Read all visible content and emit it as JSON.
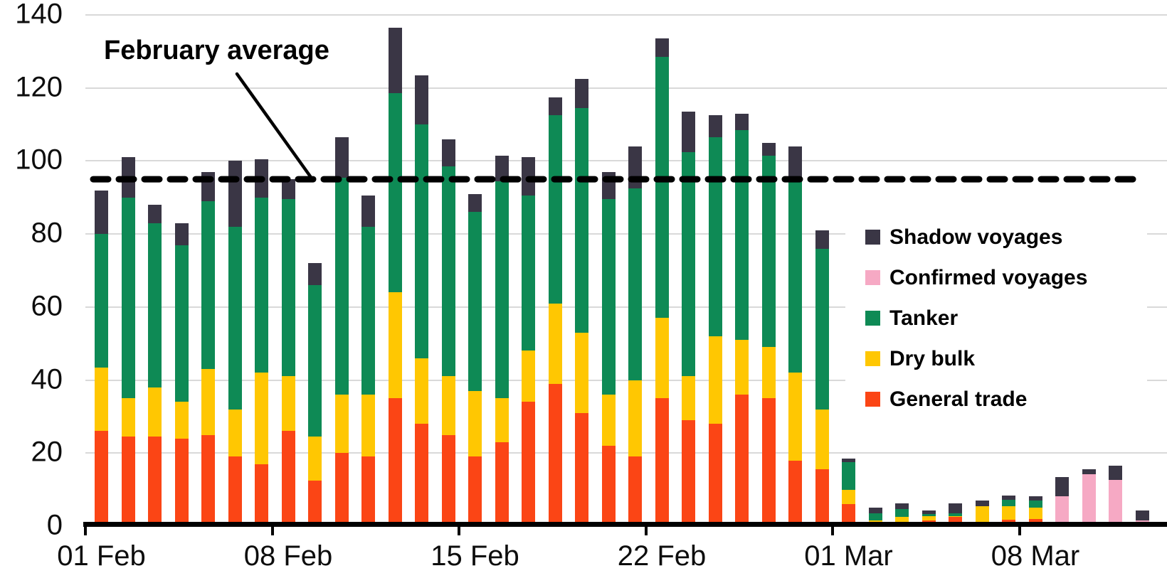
{
  "annotation": {
    "label": "February average"
  },
  "colors": {
    "shadow": "#3a3645",
    "confirmed": "#f6a9c4",
    "tanker": "#0e8a55",
    "dry": "#ffc702",
    "general": "#fb4515",
    "grid": "#d9d9d9",
    "axis": "#000000",
    "average_line": "#000000"
  },
  "legend": {
    "items": [
      {
        "label": "Shadow voyages",
        "color_key": "shadow"
      },
      {
        "label": "Confirmed voyages",
        "color_key": "confirmed"
      },
      {
        "label": "Tanker",
        "color_key": "tanker"
      },
      {
        "label": "Dry bulk",
        "color_key": "dry"
      },
      {
        "label": "General trade",
        "color_key": "general"
      }
    ]
  },
  "axis": {
    "y_tick_labels": [
      "0",
      "20",
      "40",
      "60",
      "80",
      "100",
      "120",
      "140"
    ],
    "y_tick_values": [
      0,
      20,
      40,
      60,
      80,
      100,
      120,
      140
    ],
    "x_tick_labels": [
      "01 Feb",
      "08 Feb",
      "15 Feb",
      "22 Feb",
      "01 Mar",
      "08 Mar"
    ],
    "x_tick_indices": [
      0,
      7,
      14,
      21,
      28,
      35
    ]
  },
  "chart_data": {
    "type": "bar",
    "stacked": true,
    "title": "",
    "xlabel": "",
    "ylabel": "",
    "ylim": [
      0,
      140
    ],
    "grid": true,
    "legend_position": "right-inside",
    "categories": [
      "01 Feb",
      "02 Feb",
      "03 Feb",
      "04 Feb",
      "05 Feb",
      "06 Feb",
      "07 Feb",
      "08 Feb",
      "09 Feb",
      "10 Feb",
      "11 Feb",
      "12 Feb",
      "13 Feb",
      "14 Feb",
      "15 Feb",
      "16 Feb",
      "17 Feb",
      "18 Feb",
      "19 Feb",
      "20 Feb",
      "21 Feb",
      "22 Feb",
      "23 Feb",
      "24 Feb",
      "25 Feb",
      "26 Feb",
      "27 Feb",
      "28 Feb",
      "01 Mar",
      "02 Mar",
      "03 Mar",
      "04 Mar",
      "05 Mar",
      "06 Mar",
      "07 Mar",
      "08 Mar",
      "09 Mar",
      "10 Mar",
      "11 Mar",
      "12 Mar"
    ],
    "series": [
      {
        "name": "General trade",
        "color_key": "general",
        "values": [
          26,
          24.5,
          24.5,
          24,
          25,
          19,
          17,
          26,
          12.5,
          20,
          19,
          35,
          28,
          25,
          19,
          23,
          34,
          39,
          31,
          22,
          19,
          35,
          29,
          28,
          36,
          35,
          18,
          15.5,
          6,
          0.5,
          1,
          1.6,
          2.5,
          0.3,
          1.8,
          2,
          0,
          0,
          0,
          0
        ]
      },
      {
        "name": "Dry bulk",
        "color_key": "dry",
        "values": [
          17.5,
          10.5,
          13.5,
          10,
          18,
          13,
          25,
          15,
          12,
          16,
          17,
          29,
          18,
          16,
          18,
          12,
          14,
          22,
          22,
          14,
          21,
          22,
          12,
          24,
          15,
          14,
          24,
          16.5,
          4,
          1,
          1.5,
          1.2,
          0.3,
          5.2,
          3.7,
          3,
          0,
          0,
          0,
          0
        ]
      },
      {
        "name": "Tanker",
        "color_key": "tanker",
        "values": [
          36.5,
          55,
          45,
          43,
          46,
          50,
          48,
          48.5,
          41.5,
          59.5,
          46,
          54.5,
          64,
          57.5,
          49,
          59.5,
          42.5,
          51.5,
          61.5,
          53.5,
          52.5,
          71.5,
          61.5,
          54.5,
          57.5,
          52.5,
          53,
          44,
          7.5,
          2,
          2.2,
          0.6,
          0.8,
          0,
          1.8,
          2,
          0,
          0,
          0,
          0
        ]
      },
      {
        "name": "Confirmed voyages",
        "color_key": "confirmed",
        "values": [
          0,
          0,
          0,
          0,
          0,
          0,
          0,
          0,
          0,
          0,
          0,
          0,
          0,
          0,
          0,
          0,
          0,
          0,
          0,
          0,
          0,
          0,
          0,
          0,
          0,
          0,
          0,
          0,
          0,
          0,
          0,
          0,
          0,
          0,
          0,
          0,
          8.2,
          14.3,
          12.6,
          1.6
        ]
      },
      {
        "name": "Shadow voyages",
        "color_key": "shadow",
        "values": [
          12,
          11,
          5,
          6,
          8,
          18,
          10.5,
          5.5,
          6,
          11,
          8.5,
          18,
          13.5,
          7.5,
          5,
          7,
          10.5,
          5,
          8,
          7.5,
          11.5,
          5,
          11,
          6,
          4.5,
          3.5,
          9,
          5,
          1,
          1.6,
          1.5,
          0.9,
          2.7,
          1.5,
          1.1,
          1.2,
          5.3,
          1.2,
          4,
          2.6
        ]
      }
    ],
    "average_line": {
      "value": 95,
      "label": "February average",
      "style": "dashed"
    }
  }
}
